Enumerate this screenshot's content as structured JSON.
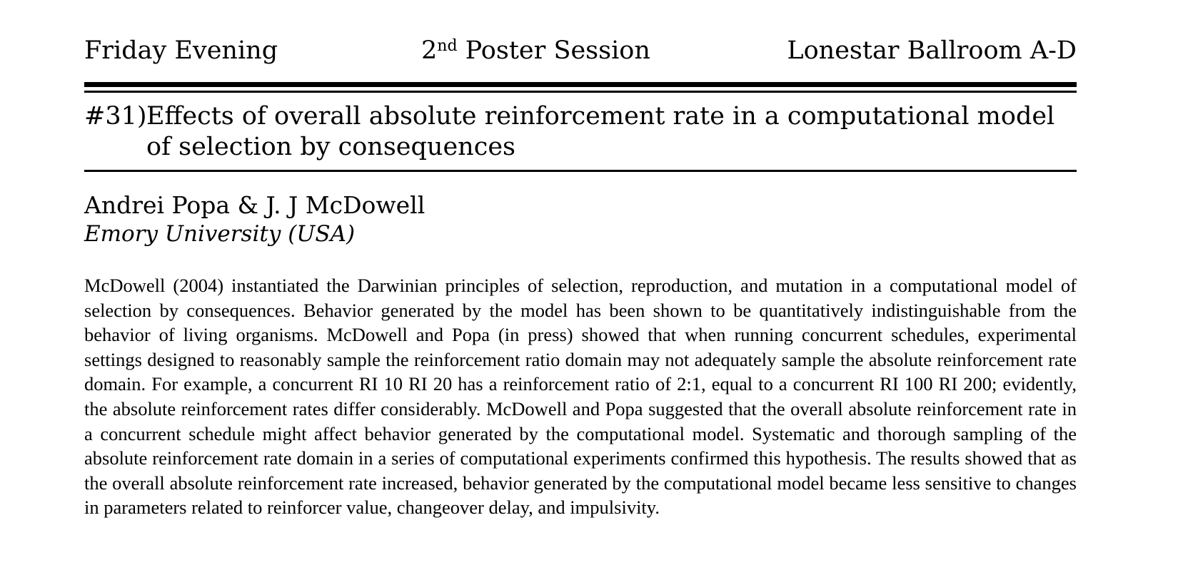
{
  "header": {
    "left": "Friday Evening",
    "center_ordinal": "2",
    "center_suffix": "nd",
    "center_rest": " Poster Session",
    "right": "Lonestar Ballroom A-D"
  },
  "poster": {
    "number": "#31)",
    "title": "Effects of overall absolute reinforcement rate in a computational model of selection by consequences"
  },
  "authors": "Andrei Popa & J. J McDowell",
  "affiliation": "Emory University (USA)",
  "abstract": "McDowell (2004) instantiated the Darwinian principles of selection, reproduction, and mutation in a computational model of selection by consequences. Behavior generated by the model has been shown to be quantitatively indistinguishable from the behavior of living organisms. McDowell and Popa (in press) showed that when running concurrent schedules, experimental settings designed to reasonably sample the reinforcement ratio domain may not adequately sample the absolute reinforcement rate domain. For example, a concurrent RI 10 RI 20 has a reinforcement ratio of 2:1, equal to a concurrent RI 100 RI 200; evidently, the absolute reinforcement rates differ considerably. McDowell and Popa suggested that the overall absolute reinforcement rate in a concurrent schedule might affect behavior generated by the computational model. Systematic and thorough sampling of the absolute reinforcement rate domain in a series of computational experiments confirmed this hypothesis. The results showed that as the overall absolute reinforcement rate increased, behavior generated by the computational model became less sensitive to changes in parameters related to reinforcer value, changeover delay, and impulsivity."
}
